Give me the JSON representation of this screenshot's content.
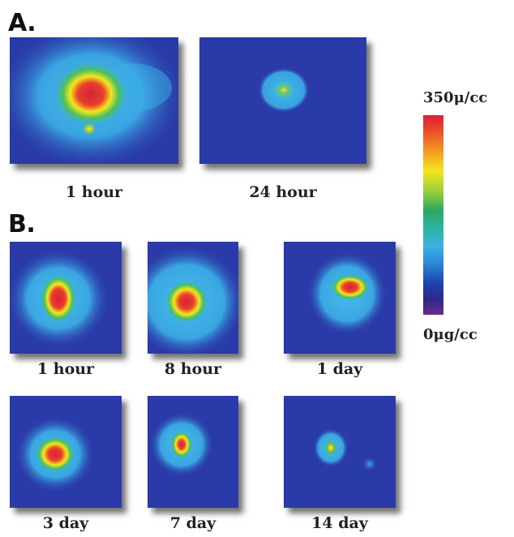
{
  "section_a": {
    "label": "A.",
    "panels": [
      {
        "caption": "1 hour"
      },
      {
        "caption": "24 hour"
      }
    ]
  },
  "section_b": {
    "label": "B.",
    "panels": [
      {
        "caption": "1 hour"
      },
      {
        "caption": "8 hour"
      },
      {
        "caption": "1 day"
      },
      {
        "caption": "3 day"
      },
      {
        "caption": "7 day"
      },
      {
        "caption": "14 day"
      }
    ]
  },
  "color_scale": {
    "max_label": "350μ/cc",
    "min_label": "0μg/cc",
    "colors": {
      "background": "#2a3aa8",
      "halo": "#3aaee6",
      "mid": "#2aa860",
      "high": "#f4e61e",
      "peak": "#d8203a"
    }
  }
}
